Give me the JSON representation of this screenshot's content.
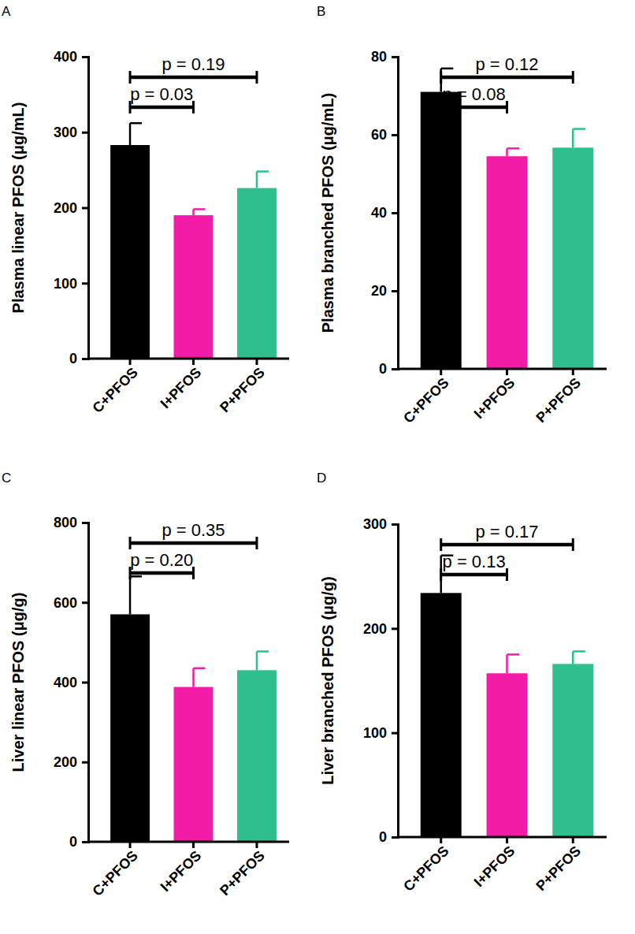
{
  "chart_data": [
    {
      "type": "bar",
      "title": "A",
      "y_label": "Plasma linear PFOS (μg/mL)",
      "categories": [
        "C+PFOS",
        "I+PFOS",
        "P+PFOS"
      ],
      "values": [
        283,
        190,
        226
      ],
      "errors": [
        29,
        8,
        22
      ],
      "colors": [
        "#000000",
        "#f21ca7",
        "#2fbe8e"
      ],
      "ylim": [
        0,
        400
      ],
      "yticks": [
        0,
        100,
        200,
        300,
        400
      ],
      "annotations": [
        {
          "text": "p = 0.19",
          "groups": [
            "C+PFOS",
            "P+PFOS"
          ]
        },
        {
          "text": "p = 0.03",
          "groups": [
            "C+PFOS",
            "I+PFOS"
          ]
        }
      ]
    },
    {
      "type": "bar",
      "title": "B",
      "y_label": "Plasma branched PFOS (μg/mL)",
      "categories": [
        "C+PFOS",
        "I+PFOS",
        "P+PFOS"
      ],
      "values": [
        71,
        54.5,
        56.7
      ],
      "errors": [
        6,
        2,
        4.8
      ],
      "colors": [
        "#000000",
        "#f21ca7",
        "#2fbe8e"
      ],
      "ylim": [
        0,
        80
      ],
      "yticks": [
        0,
        20,
        40,
        60,
        80
      ],
      "annotations": [
        {
          "text": "p = 0.12",
          "groups": [
            "C+PFOS",
            "P+PFOS"
          ]
        },
        {
          "text": "p = 0.08",
          "groups": [
            "C+PFOS",
            "I+PFOS"
          ]
        }
      ]
    },
    {
      "type": "bar",
      "title": "C",
      "y_label": "Liver linear PFOS (μg/g)",
      "categories": [
        "C+PFOS",
        "I+PFOS",
        "P+PFOS"
      ],
      "values": [
        570,
        388,
        430
      ],
      "errors": [
        95,
        47,
        47
      ],
      "colors": [
        "#000000",
        "#f21ca7",
        "#2fbe8e"
      ],
      "ylim": [
        0,
        800
      ],
      "yticks": [
        0,
        200,
        400,
        600,
        800
      ],
      "annotations": [
        {
          "text": "p = 0.35",
          "groups": [
            "C+PFOS",
            "P+PFOS"
          ]
        },
        {
          "text": "p = 0.20",
          "groups": [
            "C+PFOS",
            "I+PFOS"
          ]
        }
      ]
    },
    {
      "type": "bar",
      "title": "D",
      "y_label": "Liver branched PFOS (μg/g)",
      "categories": [
        "C+PFOS",
        "I+PFOS",
        "P+PFOS"
      ],
      "values": [
        234,
        157,
        166
      ],
      "errors": [
        36,
        18,
        12
      ],
      "colors": [
        "#000000",
        "#f21ca7",
        "#2fbe8e"
      ],
      "ylim": [
        0,
        300
      ],
      "yticks": [
        0,
        100,
        200,
        300
      ],
      "annotations": [
        {
          "text": "p = 0.17",
          "groups": [
            "C+PFOS",
            "P+PFOS"
          ]
        },
        {
          "text": "p = 0.13",
          "groups": [
            "C+PFOS",
            "I+PFOS"
          ]
        }
      ]
    }
  ]
}
